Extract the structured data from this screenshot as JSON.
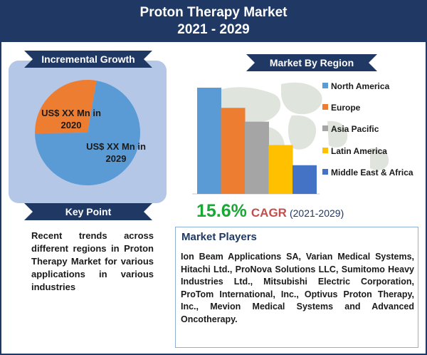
{
  "header": {
    "title": "Proton Therapy Market",
    "period": "2021 - 2029"
  },
  "incremental": {
    "heading": "Incremental Growth",
    "label_2020": "US$ XX Mn in 2020",
    "label_2029": "US$ XX Mn in 2029",
    "colors": {
      "2020": "#ed7d31",
      "2029": "#5b9bd5"
    }
  },
  "key_point": {
    "heading": "Key Point",
    "text": "Recent trends across different regions in Proton Therapy Market for various applications in various industries"
  },
  "region": {
    "heading": "Market By Region"
  },
  "chart_data": [
    {
      "type": "pie",
      "title": "Incremental Growth",
      "labels": [
        "US$ XX Mn in 2020",
        "US$ XX Mn in 2029"
      ],
      "values": [
        28,
        72
      ]
    },
    {
      "type": "bar",
      "title": "Market By Region",
      "categories": [
        "North America",
        "Europe",
        "Asia Pacific",
        "Latin America",
        "Middle East & Africa"
      ],
      "values": [
        100,
        81,
        68,
        46,
        27
      ],
      "colors": [
        "#5b9bd5",
        "#ed7d31",
        "#a5a5a5",
        "#ffc000",
        "#4472c4"
      ],
      "legend_position": "right"
    }
  ],
  "cagr": {
    "value": "15.6%",
    "label": "CAGR",
    "period": "(2021-2029)"
  },
  "players": {
    "heading": "Market Players",
    "text": "Ion Beam Applications SA, Varian Medical Systems, Hitachi Ltd., ProNova Solutions LLC, Sumitomo Heavy Industries Ltd., Mitsubishi Electric Corporation, ProTom International, Inc., Optivus Proton Therapy, Inc., Mevion Medical Systems and Advanced Oncotherapy."
  }
}
